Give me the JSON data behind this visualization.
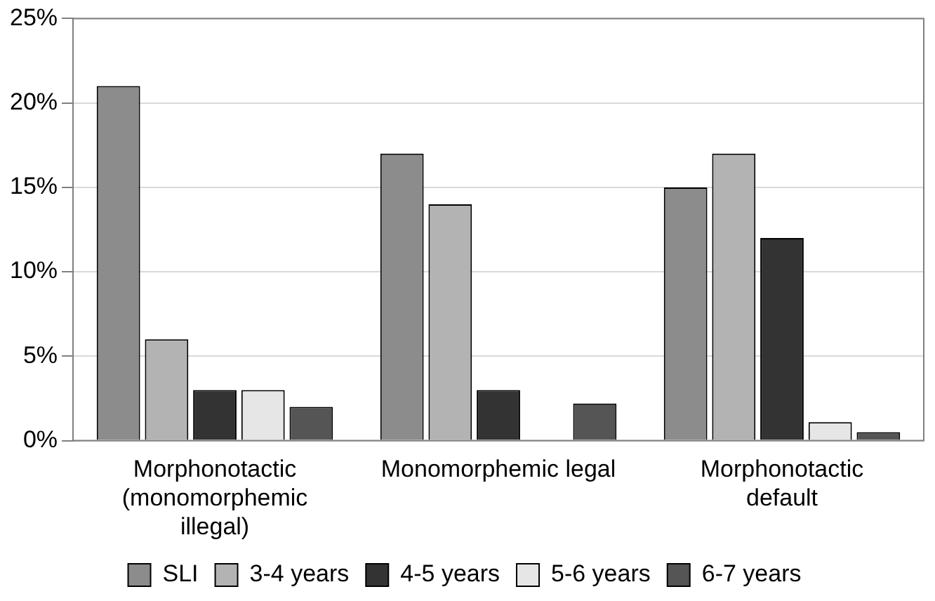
{
  "chart_data": {
    "type": "bar",
    "categories": [
      "Morphonotactic (monomorphemic illegal)",
      "Monomorphemic legal",
      "Morphonotactic default"
    ],
    "series": [
      {
        "name": "SLI",
        "color": "#8c8c8c",
        "values": [
          21,
          17,
          15
        ]
      },
      {
        "name": "3-4 years",
        "color": "#b3b3b3",
        "values": [
          6,
          14,
          17
        ]
      },
      {
        "name": "4-5 years",
        "color": "#333333",
        "values": [
          3,
          3,
          12
        ]
      },
      {
        "name": "5-6 years",
        "color": "#e6e6e6",
        "values": [
          3,
          0,
          1.1
        ]
      },
      {
        "name": "6-7 years",
        "color": "#555555",
        "values": [
          2,
          2.2,
          0.5
        ]
      }
    ],
    "ylim": [
      0,
      25
    ],
    "yticks": [
      {
        "value": 0,
        "label": "0%"
      },
      {
        "value": 5,
        "label": "5%"
      },
      {
        "value": 10,
        "label": "10%"
      },
      {
        "value": 15,
        "label": "15%"
      },
      {
        "value": 20,
        "label": "20%"
      },
      {
        "value": 25,
        "label": "25%"
      }
    ],
    "grid": "y",
    "legend": "bottom"
  }
}
